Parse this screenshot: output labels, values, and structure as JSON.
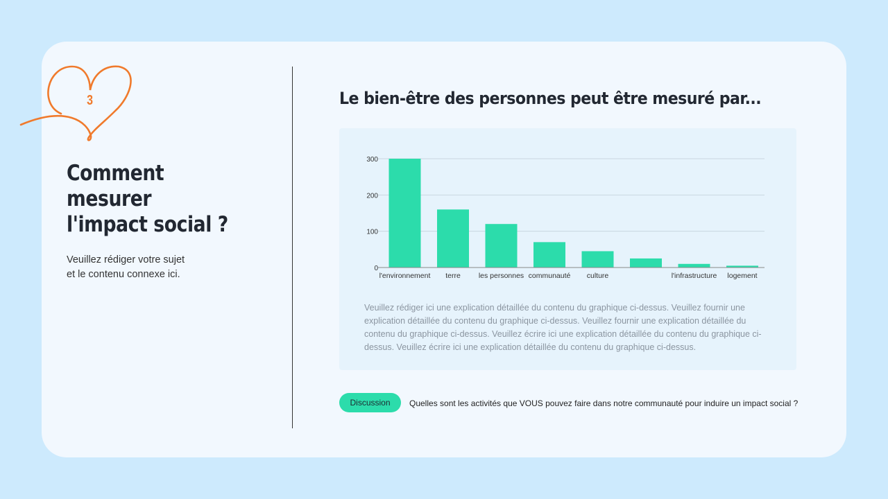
{
  "left": {
    "step_number": "3",
    "title_lines": [
      "Comment",
      "mesurer",
      "l'impact social ?"
    ],
    "subtitle_lines": [
      "Veuillez rédiger votre sujet",
      "et le contenu connexe ici."
    ]
  },
  "right": {
    "title": "Le bien-être des personnes peut être mesuré par...",
    "description": "Veuillez rédiger ici une explication détaillée du contenu du graphique ci-dessus. Veuillez fournir une explication détaillée du contenu du graphique ci-dessus. Veuillez fournir une explication détaillée du contenu du graphique ci-dessus. Veuillez écrire ici une explication détaillée du contenu du graphique ci-dessus. Veuillez écrire ici une explication détaillée du contenu du graphique ci-dessus.",
    "discussion_label": "Discussion",
    "question": "Quelles sont les activités que VOUS pouvez faire dans notre communauté pour induire un impact social ?"
  },
  "colors": {
    "accent_orange": "#f07a2c",
    "bar": "#2cdcab",
    "background": "#cdeafd"
  },
  "chart_data": {
    "type": "bar",
    "categories": [
      "l'environnement",
      "terre",
      "les personnes",
      "communauté",
      "culture",
      "",
      "l'infrastructure",
      "logement"
    ],
    "values": [
      300,
      160,
      120,
      70,
      45,
      25,
      10,
      5
    ],
    "ylim": [
      0,
      300
    ],
    "yticks": [
      0,
      100,
      200,
      300
    ],
    "grid": true,
    "title": "",
    "xlabel": "",
    "ylabel": ""
  }
}
